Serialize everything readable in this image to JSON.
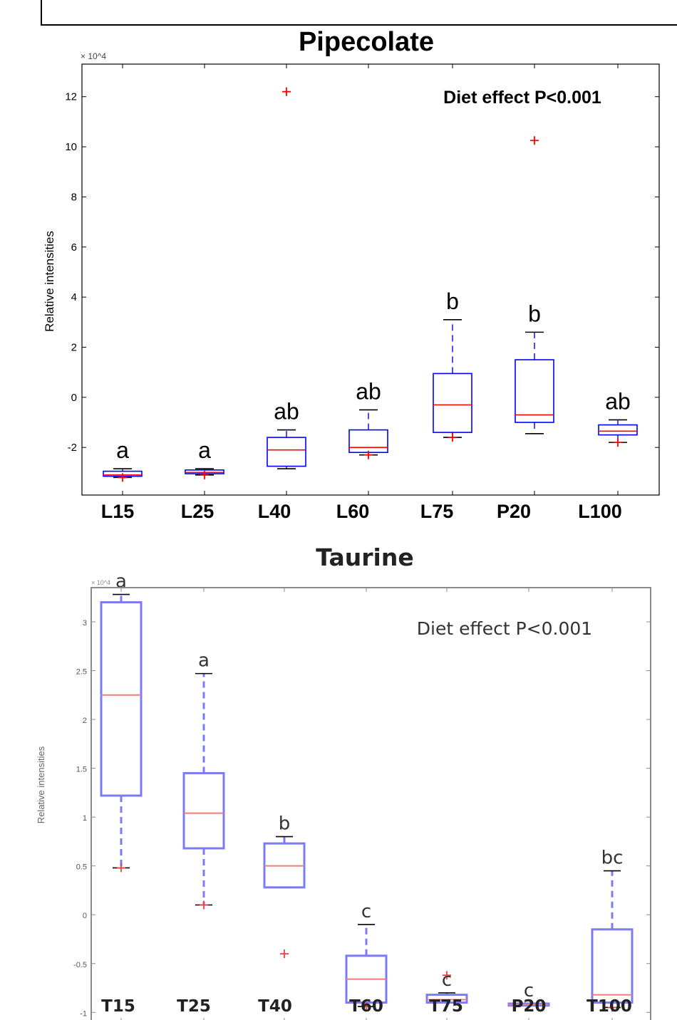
{
  "chart_data": [
    {
      "type": "box",
      "title": "Pipecolate",
      "ylabel": "Relative intensities",
      "y_exponent": "× 10^4",
      "annotation": "Diet effect P<0.001",
      "ylim": [
        -3.9,
        13.3
      ],
      "yticks": [
        -2,
        0,
        2,
        4,
        6,
        8,
        10,
        12
      ],
      "ytick_labels": [
        "-2",
        "0",
        "2",
        "4",
        "6",
        "8",
        "10",
        "12"
      ],
      "categories": [
        "L15",
        "L25",
        "L40",
        "L60",
        "L75",
        "P20",
        "L100"
      ],
      "groups": [
        "a",
        "a",
        "ab",
        "ab",
        "b",
        "b",
        "ab"
      ],
      "boxes": [
        {
          "whisker_low": -3.2,
          "q1": -3.15,
          "median": -3.1,
          "q3": -2.95,
          "whisker_high": -2.85,
          "outliers": [
            -3.2
          ]
        },
        {
          "whisker_low": -3.1,
          "q1": -3.05,
          "median": -3.0,
          "q3": -2.9,
          "whisker_high": -2.85,
          "outliers": [
            -3.1
          ]
        },
        {
          "whisker_low": -2.85,
          "q1": -2.75,
          "median": -2.1,
          "q3": -1.6,
          "whisker_high": -1.3,
          "outliers": [
            12.2
          ]
        },
        {
          "whisker_low": -2.3,
          "q1": -2.2,
          "median": -2.0,
          "q3": -1.3,
          "whisker_high": -0.5,
          "outliers": [
            -2.3
          ]
        },
        {
          "whisker_low": -1.6,
          "q1": -1.4,
          "median": -0.3,
          "q3": 0.95,
          "whisker_high": 3.1,
          "outliers": [
            -1.6
          ]
        },
        {
          "whisker_low": -1.45,
          "q1": -1.0,
          "median": -0.7,
          "q3": 1.5,
          "whisker_high": 2.6,
          "outliers": [
            10.25
          ]
        },
        {
          "whisker_low": -1.8,
          "q1": -1.5,
          "median": -1.35,
          "q3": -1.1,
          "whisker_high": -0.9,
          "outliers": [
            -1.8
          ]
        }
      ]
    },
    {
      "type": "box",
      "title": "Taurine",
      "ylabel": "Relative intensities",
      "y_exponent": "× 10^4",
      "annotation": "Diet effect P<0.001",
      "ylim": [
        -1.1,
        3.35
      ],
      "yticks": [
        -1,
        -0.5,
        0,
        0.5,
        1,
        1.5,
        2,
        2.5,
        3
      ],
      "ytick_labels": [
        "-1",
        "-0.5",
        "0",
        "0.5",
        "1",
        "1.5",
        "2",
        "2.5",
        "3"
      ],
      "categories": [
        "T15",
        "T25",
        "T40",
        "T60",
        "T75",
        "P20",
        "T100"
      ],
      "groups": [
        "a",
        "a",
        "b",
        "c",
        "c",
        "c",
        "bc"
      ],
      "boxes": [
        {
          "whisker_low": 0.48,
          "q1": 1.22,
          "median": 2.25,
          "q3": 3.2,
          "whisker_high": 3.28,
          "outliers": [
            0.48
          ]
        },
        {
          "whisker_low": 0.1,
          "q1": 0.68,
          "median": 1.04,
          "q3": 1.45,
          "whisker_high": 2.47,
          "outliers": [
            0.1
          ]
        },
        {
          "whisker_low": 0.28,
          "q1": 0.28,
          "median": 0.5,
          "q3": 0.73,
          "whisker_high": 0.8,
          "outliers": [
            -0.4
          ]
        },
        {
          "whisker_low": -0.94,
          "q1": -0.9,
          "median": -0.66,
          "q3": -0.42,
          "whisker_high": -0.1,
          "outliers": [
            -0.94
          ]
        },
        {
          "whisker_low": -0.9,
          "q1": -0.9,
          "median": -0.87,
          "q3": -0.82,
          "whisker_high": -0.8,
          "outliers": [
            -0.62
          ]
        },
        {
          "whisker_low": -0.93,
          "q1": -0.93,
          "median": -0.92,
          "q3": -0.91,
          "whisker_high": -0.91,
          "outliers": []
        },
        {
          "whisker_low": -0.95,
          "q1": -0.9,
          "median": -0.82,
          "q3": -0.15,
          "whisker_high": 0.45,
          "outliers": [
            -0.95
          ]
        }
      ]
    }
  ],
  "colors": {
    "box1": "#0000ff",
    "median1": "#ff0000",
    "outlier1": "#ff0000",
    "box2": "#7b7bf4",
    "median2": "#f07c7c",
    "outlier2": "#ee4444",
    "frame1": "#000000",
    "frame2": "#8a8a8a"
  }
}
